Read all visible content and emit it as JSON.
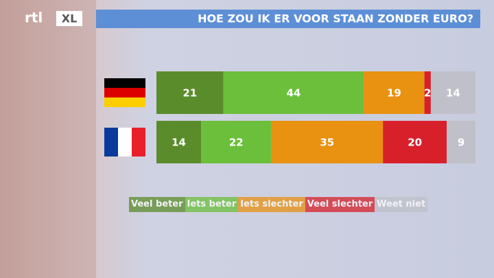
{
  "logo": {
    "left": "rtl",
    "right": "XL"
  },
  "chart_data": {
    "type": "stacked-bar",
    "title": "HOE ZOU IK ER VOOR STAAN ZONDER EURO?",
    "categories": [
      null,
      null
    ],
    "xlim": [
      0,
      100
    ],
    "series": [
      {
        "name": "Veel beter",
        "color": "#5b8c2b",
        "values": [
          21,
          14
        ]
      },
      {
        "name": "Iets beter",
        "color": "#6cbf3b",
        "values": [
          44,
          22
        ]
      },
      {
        "name": "Iets slechter",
        "color": "#e99110",
        "values": [
          19,
          35
        ]
      },
      {
        "name": "Veel slechter",
        "color": "#d8202b",
        "values": [
          2,
          20
        ]
      },
      {
        "name": "Weet niet",
        "color": "#bfc0c9",
        "values": [
          14,
          9
        ]
      }
    ]
  }
}
